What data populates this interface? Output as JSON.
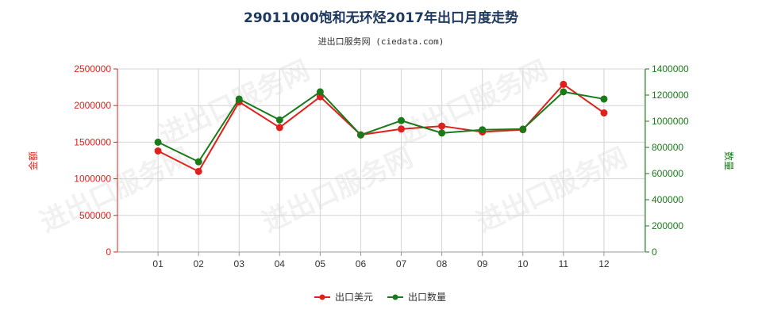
{
  "chart_data": {
    "type": "line",
    "title": "29011000饱和无环烃2017年出口月度走势",
    "subtitle": "进出口服务网 (ciedata.com)",
    "categories": [
      "01",
      "02",
      "03",
      "04",
      "05",
      "06",
      "07",
      "08",
      "09",
      "10",
      "11",
      "12"
    ],
    "y_left": {
      "label": "金额",
      "ylim": [
        0,
        2500000
      ],
      "ticks": [
        0,
        500000,
        1000000,
        1500000,
        2000000,
        2500000
      ],
      "color": "#e0201c"
    },
    "y_right": {
      "label": "数量",
      "ylim": [
        0,
        1400000
      ],
      "ticks": [
        0,
        200000,
        400000,
        600000,
        800000,
        1000000,
        1200000,
        1400000
      ],
      "color": "#1a7a1a"
    },
    "series": [
      {
        "name": "出口美元",
        "axis": "left",
        "color": "#e0201c",
        "values": [
          1380000,
          1100000,
          2050000,
          1700000,
          2120000,
          1600000,
          1680000,
          1720000,
          1640000,
          1670000,
          2290000,
          1900000
        ]
      },
      {
        "name": "出口数量",
        "axis": "right",
        "color": "#1a7a1a",
        "values": [
          840000,
          690000,
          1170000,
          1010000,
          1225000,
          895000,
          1005000,
          910000,
          935000,
          940000,
          1225000,
          1170000
        ]
      }
    ],
    "grid": true,
    "legend_position": "bottom-center",
    "watermark": "进出口服务网"
  }
}
